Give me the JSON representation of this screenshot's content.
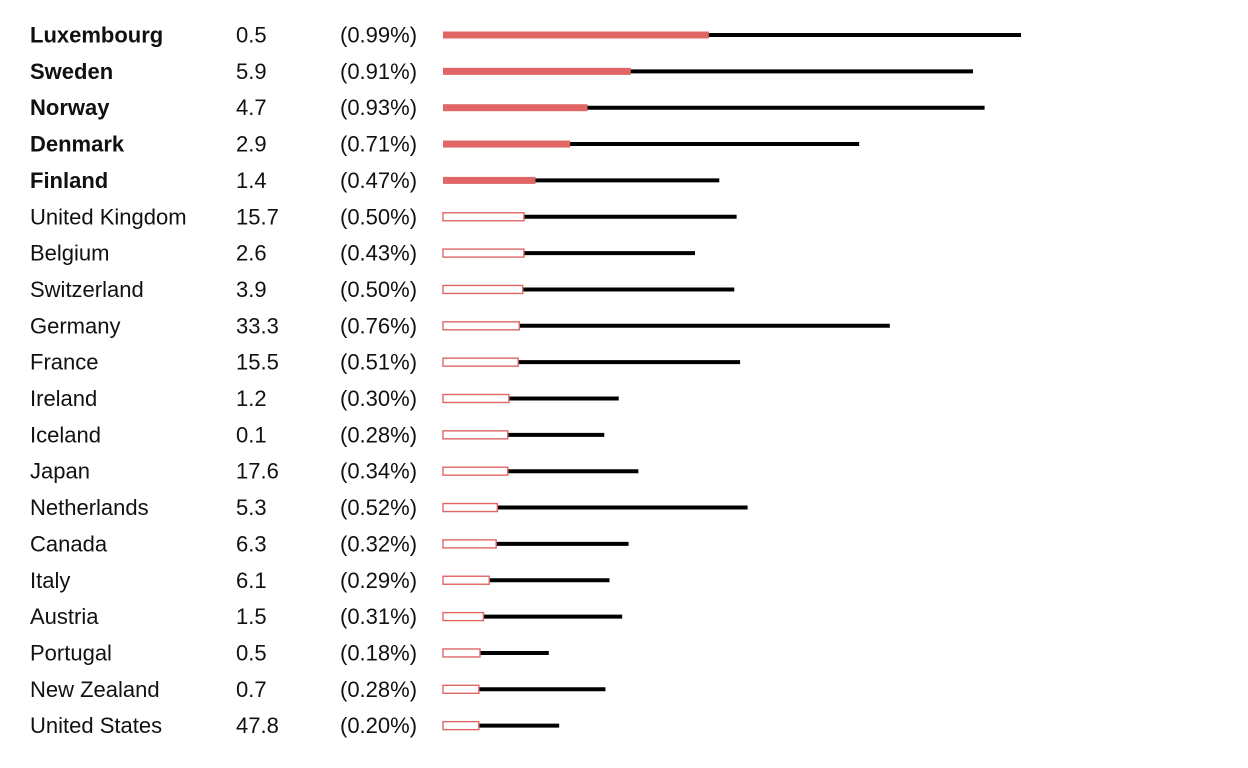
{
  "chart_data": {
    "type": "bar",
    "colors": {
      "filled": "#e06666",
      "hollow_outline": "#e06666",
      "line": "#000000",
      "text": "#111111"
    },
    "rows": [
      {
        "country": "Luxembourg",
        "value": "0.5",
        "pct": "(0.99%)",
        "highlight": true,
        "bar": 0.46,
        "line": 1.0
      },
      {
        "country": "Sweden",
        "value": "5.9",
        "pct": "(0.91%)",
        "highlight": true,
        "bar": 0.325,
        "line": 0.917
      },
      {
        "country": "Norway",
        "value": "4.7",
        "pct": "(0.93%)",
        "highlight": true,
        "bar": 0.25,
        "line": 0.937
      },
      {
        "country": "Denmark",
        "value": "2.9",
        "pct": "(0.71%)",
        "highlight": true,
        "bar": 0.22,
        "line": 0.72
      },
      {
        "country": "Finland",
        "value": "1.4",
        "pct": "(0.47%)",
        "highlight": true,
        "bar": 0.16,
        "line": 0.478
      },
      {
        "country": "United Kingdom",
        "value": "15.7",
        "pct": "(0.50%)",
        "highlight": false,
        "bar": 0.14,
        "line": 0.508
      },
      {
        "country": "Belgium",
        "value": "2.6",
        "pct": "(0.43%)",
        "highlight": false,
        "bar": 0.14,
        "line": 0.436
      },
      {
        "country": "Switzerland",
        "value": "3.9",
        "pct": "(0.50%)",
        "highlight": false,
        "bar": 0.138,
        "line": 0.504
      },
      {
        "country": "Germany",
        "value": "33.3",
        "pct": "(0.76%)",
        "highlight": false,
        "bar": 0.132,
        "line": 0.773
      },
      {
        "country": "France",
        "value": "15.5",
        "pct": "(0.51%)",
        "highlight": false,
        "bar": 0.13,
        "line": 0.514
      },
      {
        "country": "Ireland",
        "value": "1.2",
        "pct": "(0.30%)",
        "highlight": false,
        "bar": 0.114,
        "line": 0.304
      },
      {
        "country": "Iceland",
        "value": "0.1",
        "pct": "(0.28%)",
        "highlight": false,
        "bar": 0.112,
        "line": 0.279
      },
      {
        "country": "Japan",
        "value": "17.6",
        "pct": "(0.34%)",
        "highlight": false,
        "bar": 0.112,
        "line": 0.338
      },
      {
        "country": "Netherlands",
        "value": "5.3",
        "pct": "(0.52%)",
        "highlight": false,
        "bar": 0.094,
        "line": 0.527
      },
      {
        "country": "Canada",
        "value": "6.3",
        "pct": "(0.32%)",
        "highlight": false,
        "bar": 0.092,
        "line": 0.321
      },
      {
        "country": "Italy",
        "value": "6.1",
        "pct": "(0.29%)",
        "highlight": false,
        "bar": 0.08,
        "line": 0.288
      },
      {
        "country": "Austria",
        "value": "1.5",
        "pct": "(0.31%)",
        "highlight": false,
        "bar": 0.07,
        "line": 0.31
      },
      {
        "country": "Portugal",
        "value": "0.5",
        "pct": "(0.18%)",
        "highlight": false,
        "bar": 0.064,
        "line": 0.183
      },
      {
        "country": "New Zealand",
        "value": "0.7",
        "pct": "(0.28%)",
        "highlight": false,
        "bar": 0.062,
        "line": 0.281
      },
      {
        "country": "United States",
        "value": "47.8",
        "pct": "(0.20%)",
        "highlight": false,
        "bar": 0.062,
        "line": 0.201
      }
    ]
  }
}
